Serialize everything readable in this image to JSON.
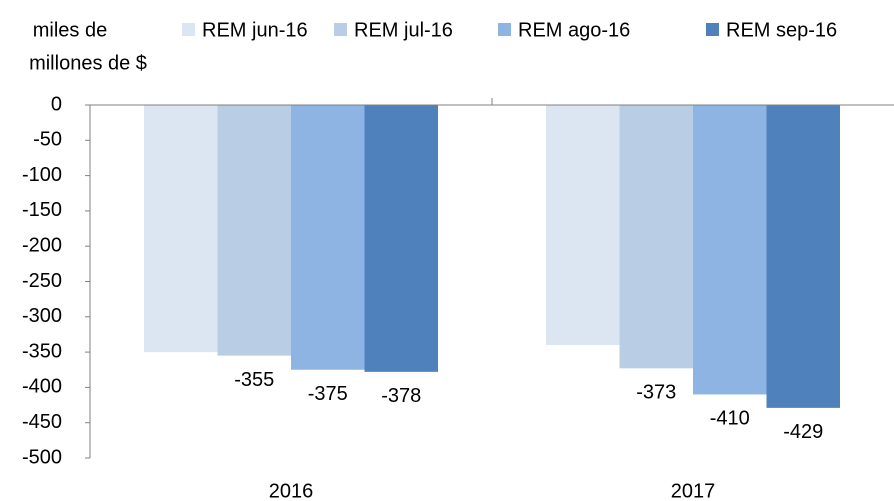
{
  "chart_data": {
    "type": "bar",
    "ylabel": [
      "miles de",
      "millones de $"
    ],
    "categories": [
      "2016",
      "2017"
    ],
    "series": [
      {
        "name": "REM jun-16",
        "color": "#dce6f2",
        "values": [
          -350,
          -340
        ],
        "labels": false
      },
      {
        "name": "REM jul-16",
        "color": "#b9cde5",
        "values": [
          -355,
          -373
        ],
        "labels": true
      },
      {
        "name": "REM ago-16",
        "color": "#8eb4e3",
        "values": [
          -375,
          -410
        ],
        "labels": true
      },
      {
        "name": "REM sep-16",
        "color": "#4f81bd",
        "values": [
          -378,
          -429
        ],
        "labels": true
      }
    ],
    "ylim": [
      -500,
      0
    ],
    "yticks": [
      0,
      -50,
      -100,
      -150,
      -200,
      -250,
      -300,
      -350,
      -400,
      -450,
      -500
    ],
    "grid": false
  }
}
